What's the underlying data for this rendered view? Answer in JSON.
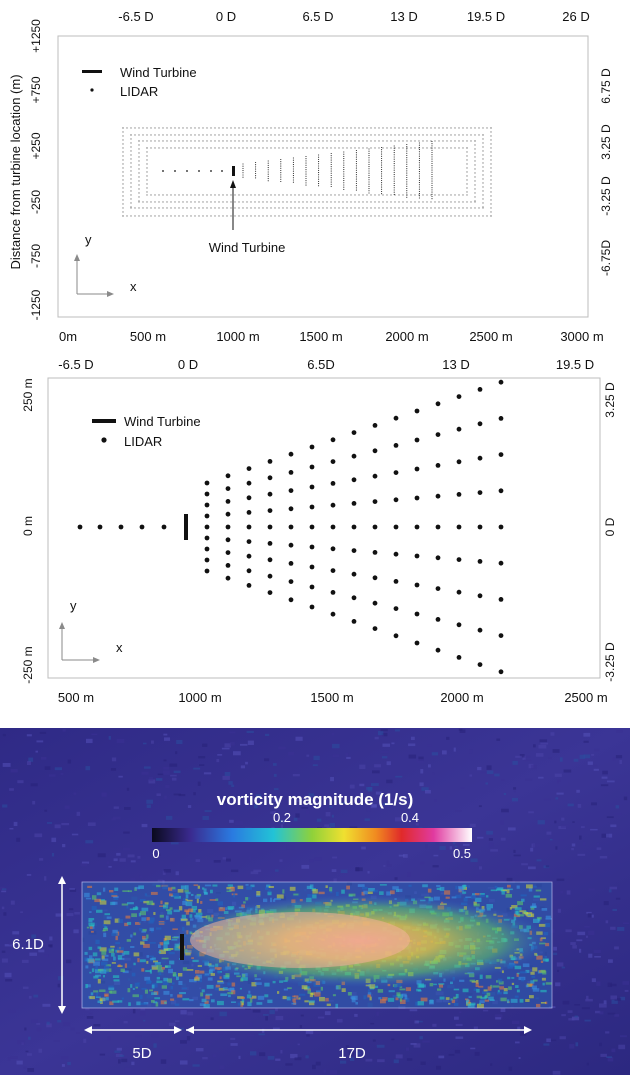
{
  "panel_top": {
    "top_axis_labels": [
      "-6.5 D",
      "0 D",
      "6.5 D",
      "13 D",
      "19.5 D",
      "26 D"
    ],
    "bottom_axis_labels": [
      "0m",
      "500 m",
      "1000 m",
      "1500 m",
      "2000 m",
      "2500 m",
      "3000 m"
    ],
    "left_axis_labels": [
      "+1250",
      "+750",
      "+250",
      "-250",
      "-750",
      "-1250"
    ],
    "right_axis_labels": [
      "6.75 D",
      "3.25 D",
      "-3.25 D",
      "-6.75D"
    ],
    "ylabel": "Distance from turbine location (m)",
    "legend": {
      "turbine": "Wind Turbine",
      "lidar": "LIDAR"
    },
    "annotation": "Wind Turbine",
    "axis_x": "x",
    "axis_y": "y"
  },
  "panel_mid": {
    "top_axis_labels": [
      "-6.5 D",
      "0 D",
      "6.5D",
      "13 D",
      "19.5 D"
    ],
    "bottom_axis_labels": [
      "500 m",
      "1000 m",
      "1500 m",
      "2000 m",
      "2500 m"
    ],
    "left_axis_labels": [
      "250 m",
      "0 m",
      "-250 m"
    ],
    "right_axis_labels": [
      "3.25 D",
      "0 D",
      "-3.25 D"
    ],
    "legend": {
      "turbine": "Wind Turbine",
      "lidar": "LIDAR"
    },
    "axis_x": "x",
    "axis_y": "y"
  },
  "panel_bottom": {
    "colorbar_title": "vorticity magnitude (1/s)",
    "colorbar_ticks_top": [
      "0.2",
      "0.4"
    ],
    "colorbar_ticks_bottom": [
      "0",
      "0.5"
    ],
    "dim_height": "6.1D",
    "dim_upstream": "5D",
    "dim_downstream": "17D"
  },
  "colors": {
    "field_background": "#3b2f8f",
    "grid_frame": "#bdbdbd",
    "grid_dots": "#8a8a8a",
    "lidar": "#111111",
    "turbine": "#111111"
  },
  "icons": [
    "wind-turbine-icon",
    "lidar-point-icon",
    "axis-arrow-icon",
    "dimension-arrow-icon"
  ]
}
